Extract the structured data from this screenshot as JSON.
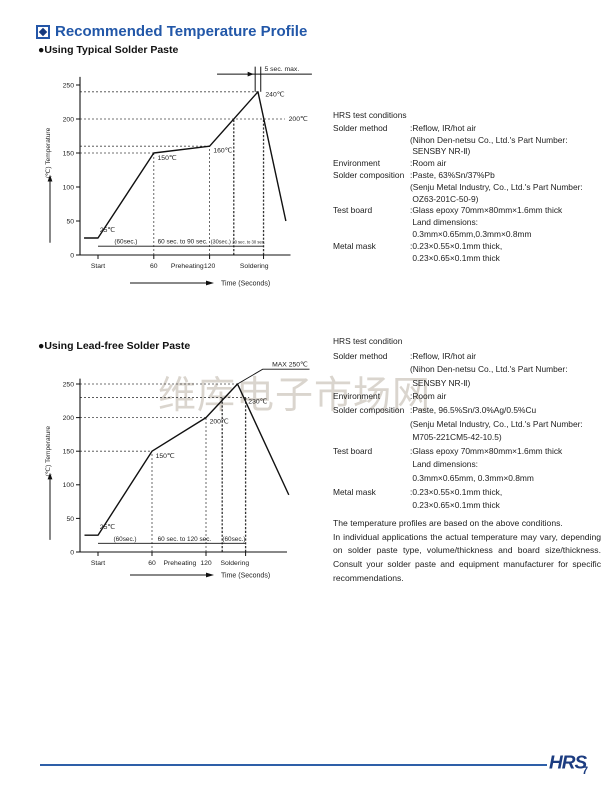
{
  "page": {
    "title": "Recommended Temperature Profile",
    "watermark": "维库电子市场网",
    "logo_text": "HRS",
    "page_number": "7",
    "accent_color": "#2257a8",
    "navy_color": "#1c3c80"
  },
  "sections": [
    {
      "heading": "●Using Typical Solder Paste"
    },
    {
      "heading": "●Using Lead-free Solder Paste"
    }
  ],
  "conditions_blocks": [
    {
      "heading": "HRS test conditions",
      "rows": [
        {
          "label": "Solder method",
          "lines": [
            ":Reflow, IR/hot air",
            "(Nihon Den-netsu Co., Ltd.'s Part Number:",
            " SENSBY NR-Ⅱ)"
          ]
        },
        {
          "label": "Environment",
          "lines": [
            ":Room air"
          ]
        },
        {
          "label": "Solder composition",
          "lines": [
            ":Paste, 63%Sn/37%Pb",
            "(Senju Metal Industry, Co., Ltd.'s Part Number:",
            " OZ63-201C-50-9)"
          ]
        },
        {
          "label": "Test board",
          "lines": [
            ":Glass epoxy 70mm×80mm×1.6mm thick",
            " Land dimensions:",
            " 0.3mm×0.65mm,0.3mm×0.8mm"
          ]
        },
        {
          "label": "Metal mask",
          "lines": [
            ":0.23×0.55×0.1mm thick,",
            " 0.23×0.65×0.1mm thick"
          ]
        }
      ]
    },
    {
      "heading": "HRS test condition",
      "rows": [
        {
          "label": "Solder method",
          "lines": [
            ":Reflow, IR/hot air",
            "(Nihon Den-netsu Co., Ltd.'s Part Number:",
            " SENSBY NR-Ⅱ)"
          ]
        },
        {
          "label": "Environment",
          "lines": [
            ":Room air"
          ]
        },
        {
          "label": "Solder composition",
          "lines": [
            ":Paste, 96.5%Sn/3.0%Ag/0.5%Cu",
            "(Senju Metal Industry, Co., Ltd.'s Part Number:",
            " M705-221CM5-42-10.5)"
          ]
        },
        {
          "label": "Test board",
          "lines": [
            ":Glass epoxy 70mm×80mm×1.6mm thick",
            " Land dimensions:",
            " 0.3mm×0.65mm, 0.3mm×0.8mm"
          ]
        },
        {
          "label": "Metal mask",
          "lines": [
            ":0.23×0.55×0.1mm thick,",
            " 0.23×0.65×0.1mm thick"
          ]
        }
      ]
    }
  ],
  "note": {
    "line1": "The temperature profiles are based on the above conditions.",
    "body": "In individual applications the actual temperature may vary, depending on solder paste type, volume/thickness and board size/thickness. Consult your solder paste and equipment manufacturer for specific recommendations."
  },
  "chart_data": [
    {
      "type": "line",
      "title": "Using Typical Solder Paste",
      "ylabel": "(℃) Temperature",
      "xlabel": "Time (Seconds)",
      "yticks": [
        0,
        50,
        100,
        150,
        200,
        250
      ],
      "ylim": [
        0,
        260
      ],
      "grid": "dotted-guides-only",
      "xticks": [
        {
          "label": "Start",
          "t": 0
        },
        {
          "label": "60",
          "t": 60
        },
        {
          "label": "Preheating",
          "t": 96,
          "tick": false
        },
        {
          "label": "120",
          "t": 120
        },
        {
          "label": "Soldering",
          "t": 168,
          "tick": false
        },
        {
          "label": "",
          "t": 178
        }
      ],
      "profile": [
        [
          -15,
          25
        ],
        [
          0,
          25
        ],
        [
          60,
          150
        ],
        [
          120,
          160
        ],
        [
          172,
          240
        ],
        [
          202,
          50
        ]
      ],
      "h_guides": [
        [
          150,
          60
        ],
        [
          160,
          120
        ],
        [
          200,
          201
        ],
        [
          240,
          172
        ]
      ],
      "v_guides": [
        [
          60,
          150,
          false
        ],
        [
          120,
          160,
          false
        ],
        [
          146,
          200,
          true
        ],
        [
          178,
          200,
          true
        ]
      ],
      "point_labels": [
        {
          "text": "25℃",
          "t": 2,
          "temp": 34
        },
        {
          "text": "150℃",
          "t": 64,
          "temp": 140
        },
        {
          "text": "160℃",
          "t": 124,
          "temp": 151
        },
        {
          "text": "240℃",
          "t": 180,
          "temp": 233
        },
        {
          "text": "200℃",
          "t": 205,
          "temp": 197
        }
      ],
      "timeline": {
        "temp": 13,
        "t_start": 0,
        "t_end": 178,
        "segments": [
          {
            "text": "(60sec.)",
            "t": 30,
            "size": 6.4
          },
          {
            "text": "60 sec. to 90 sec.",
            "t": 91,
            "size": 6.4
          },
          {
            "text": "(30sec.)",
            "t": 132,
            "size": 5.6
          },
          {
            "text": "20 sec. to 30 sec.",
            "t": 162,
            "size": 4.2
          }
        ]
      },
      "annotation": {
        "kind": "dwell",
        "text": "5 sec. max.",
        "v1": 169,
        "v2": 175,
        "temp_top": 277,
        "line_temp": 266,
        "line_t1": 128,
        "line_t2": 230,
        "text_t": 179
      },
      "layout": {
        "x0": 58,
        "y0": 195,
        "xscale": 0.93,
        "yscale": 0.68,
        "axis_x": 40,
        "ytop": 262,
        "t_end": 207,
        "time_arrow_y": 223
      }
    },
    {
      "type": "line",
      "title": "Using Lead-free Solder Paste",
      "ylabel": "(℃) Temperature",
      "xlabel": "Time (Seconds)",
      "yticks": [
        0,
        50,
        100,
        150,
        200,
        250
      ],
      "ylim": [
        0,
        260
      ],
      "grid": "dotted-guides-only",
      "xticks": [
        {
          "label": "Start",
          "t": 0
        },
        {
          "label": "60",
          "t": 60
        },
        {
          "label": "Preheating",
          "t": 91,
          "tick": false
        },
        {
          "label": "120",
          "t": 120
        },
        {
          "label": "Soldering",
          "t": 152,
          "tick": false
        },
        {
          "label": "",
          "t": 164
        }
      ],
      "profile": [
        [
          -15,
          25
        ],
        [
          0,
          25
        ],
        [
          60,
          150
        ],
        [
          120,
          200
        ],
        [
          155,
          250
        ],
        [
          212,
          85
        ]
      ],
      "h_guides": [
        [
          150,
          60
        ],
        [
          200,
          120
        ],
        [
          230,
          168
        ],
        [
          250,
          155
        ]
      ],
      "v_guides": [
        [
          60,
          150,
          false
        ],
        [
          120,
          200,
          false
        ],
        [
          138,
          230,
          true
        ],
        [
          164,
          230,
          true
        ]
      ],
      "point_labels": [
        {
          "text": "25℃",
          "t": 2,
          "temp": 34
        },
        {
          "text": "150℃",
          "t": 64,
          "temp": 140
        },
        {
          "text": "200℃",
          "t": 124,
          "temp": 191
        },
        {
          "text": "230℃",
          "t": 167,
          "temp": 221
        }
      ],
      "timeline": {
        "temp": 13,
        "t_start": 0,
        "t_end": 164,
        "segments": [
          {
            "text": "(60sec.)",
            "t": 30,
            "size": 6.4
          },
          {
            "text": "60 sec. to 120 sec.",
            "t": 96,
            "size": 6.4
          },
          {
            "text": "(60sec.)",
            "t": 151,
            "size": 6.4
          }
        ]
      },
      "annotation": {
        "kind": "max",
        "text": "MAX 250℃",
        "from_t": 155,
        "from_temp": 250,
        "elbow_t": 183,
        "elbow_temp": 272,
        "end_t": 235,
        "text_t": 233,
        "text_temp": 279
      },
      "layout": {
        "x0": 58,
        "y0": 195,
        "xscale": 0.9,
        "yscale": 0.672,
        "axis_x": 40,
        "ytop": 258,
        "t_end": 210,
        "time_arrow_y": 218
      }
    }
  ]
}
